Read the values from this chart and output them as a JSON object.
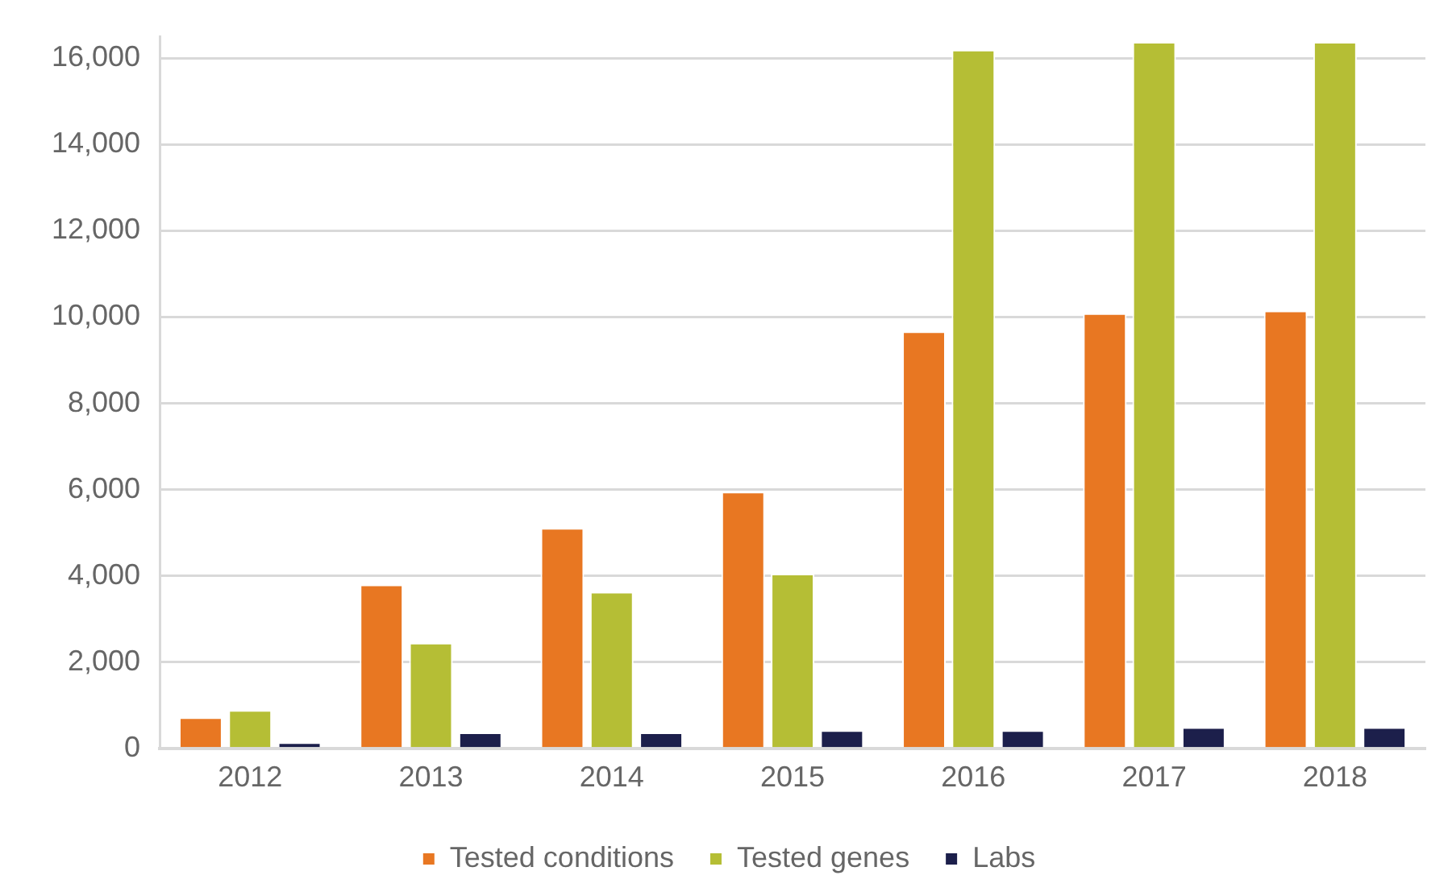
{
  "chart_data": {
    "type": "bar",
    "categories": [
      "2012",
      "2013",
      "2014",
      "2015",
      "2016",
      "2017",
      "2018"
    ],
    "series": [
      {
        "name": "Tested conditions",
        "color": "#e87722",
        "values": [
          720,
          3800,
          5110,
          5950,
          9670,
          10090,
          10150
        ]
      },
      {
        "name": "Tested genes",
        "color": "#b5be35",
        "values": [
          890,
          2450,
          3630,
          4050,
          16200,
          16380,
          16380
        ]
      },
      {
        "name": "Labs",
        "color": "#1c1f4b",
        "values": [
          140,
          370,
          370,
          420,
          420,
          490,
          490
        ]
      }
    ],
    "ylim": [
      0,
      16500
    ],
    "yticks": [
      {
        "value": 0,
        "label": "0"
      },
      {
        "value": 2000,
        "label": "2,000"
      },
      {
        "value": 4000,
        "label": "4,000"
      },
      {
        "value": 6000,
        "label": "6,000"
      },
      {
        "value": 8000,
        "label": "8,000"
      },
      {
        "value": 10000,
        "label": "10,000"
      },
      {
        "value": 12000,
        "label": "12,000"
      },
      {
        "value": 14000,
        "label": "14,000"
      },
      {
        "value": 16000,
        "label": "16,000"
      }
    ],
    "grid": "y",
    "legend": "bottom"
  }
}
